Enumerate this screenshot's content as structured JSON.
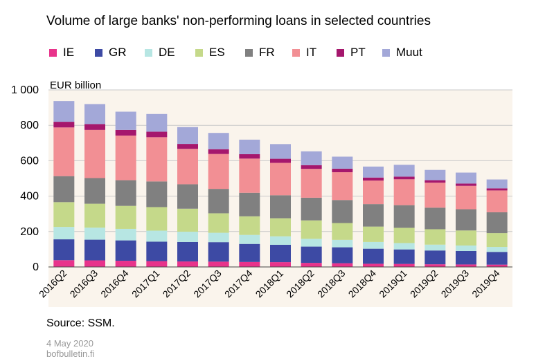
{
  "title": "Volume of large banks' non-performing loans in selected countries",
  "source": "Source: SSM.",
  "date": "4 May 2020",
  "site": "bofbulletin.fi",
  "colors": {
    "IE": "#e8338b",
    "GR": "#3d4aa4",
    "DE": "#b7e6e3",
    "ES": "#c5d98a",
    "FR": "#808080",
    "IT": "#f28f94",
    "PT": "#a5176d",
    "Muut": "#a3a8d8",
    "plot_bg": "#faf4ec"
  },
  "chart_data": {
    "type": "bar",
    "stacked": true,
    "title": "Volume of large banks' non-performing loans in selected countries",
    "ylabel": "EUR billion",
    "ylim": [
      0,
      1000
    ],
    "yticks": [
      0,
      200,
      400,
      600,
      800,
      1000
    ],
    "ytick_labels": [
      "0",
      "200",
      "400",
      "600",
      "800",
      "1 000"
    ],
    "grid": "horizontal",
    "legend": "top",
    "categories": [
      "2016Q2",
      "2016Q3",
      "2016Q4",
      "2017Q1",
      "2017Q2",
      "2017Q3",
      "2017Q4",
      "2018Q1",
      "2018Q2",
      "2018Q3",
      "2018Q4",
      "2019Q1",
      "2019Q2",
      "2019Q3",
      "2019Q4"
    ],
    "series": [
      {
        "name": "IE",
        "values": [
          38,
          37,
          35,
          33,
          31,
          30,
          28,
          27,
          23,
          21,
          18,
          17,
          15,
          14,
          13
        ]
      },
      {
        "name": "GR",
        "values": [
          118,
          117,
          115,
          110,
          110,
          110,
          102,
          98,
          92,
          90,
          85,
          82,
          78,
          76,
          72
        ]
      },
      {
        "name": "DE",
        "values": [
          70,
          68,
          65,
          62,
          58,
          53,
          51,
          48,
          44,
          42,
          38,
          36,
          33,
          31,
          28
        ]
      },
      {
        "name": "ES",
        "values": [
          140,
          135,
          130,
          133,
          130,
          110,
          105,
          102,
          104,
          95,
          87,
          86,
          87,
          85,
          78
        ]
      },
      {
        "name": "FR",
        "values": [
          147,
          145,
          145,
          145,
          138,
          138,
          133,
          130,
          128,
          130,
          127,
          128,
          122,
          120,
          118
        ]
      },
      {
        "name": "IT",
        "values": [
          275,
          272,
          252,
          250,
          200,
          197,
          193,
          183,
          163,
          157,
          133,
          146,
          141,
          132,
          123
        ]
      },
      {
        "name": "PT",
        "values": [
          32,
          33,
          32,
          31,
          28,
          27,
          25,
          23,
          21,
          20,
          17,
          15,
          14,
          13,
          12
        ]
      },
      {
        "name": "Muut",
        "values": [
          117,
          113,
          103,
          100,
          95,
          92,
          82,
          83,
          78,
          68,
          62,
          67,
          58,
          62,
          50
        ]
      }
    ]
  }
}
